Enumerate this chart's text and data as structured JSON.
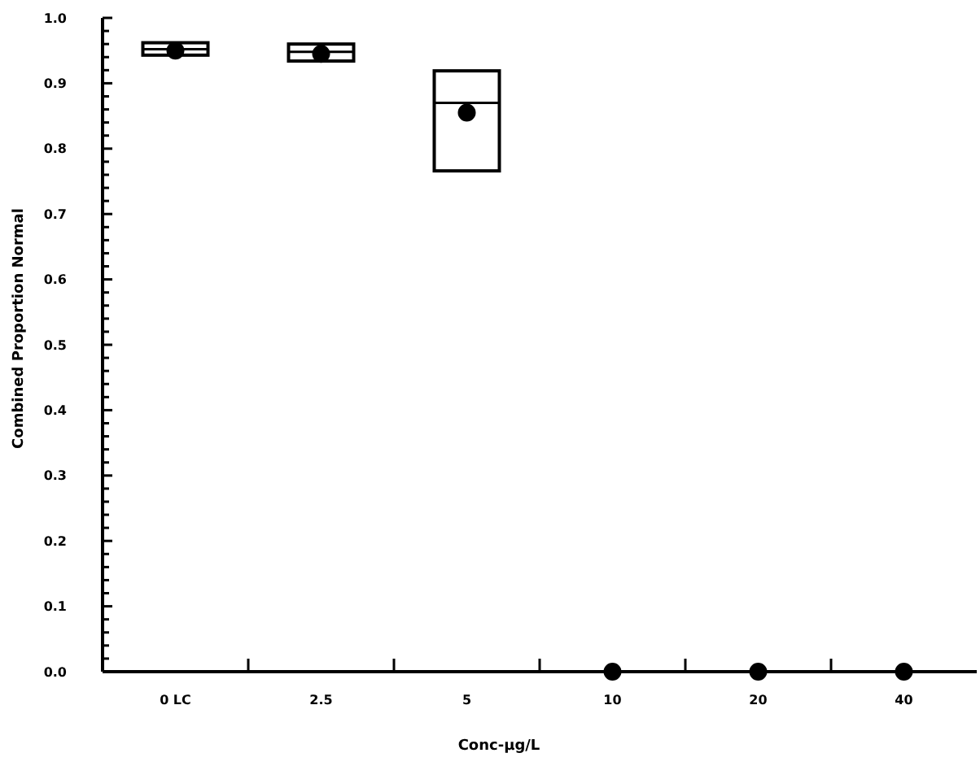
{
  "chart_data": {
    "type": "box",
    "xlabel": "Conc-µg/L",
    "ylabel": "Combined Proportion Normal",
    "categories": [
      "0 LC",
      "2.5",
      "5",
      "10",
      "20",
      "40"
    ],
    "boxes": [
      {
        "low": 0.943,
        "q1": 0.943,
        "median": 0.952,
        "q3": 0.962,
        "high": 0.962,
        "mean": 0.95
      },
      {
        "low": 0.934,
        "q1": 0.934,
        "median": 0.948,
        "q3": 0.96,
        "high": 0.96,
        "mean": 0.945
      },
      {
        "low": 0.766,
        "q1": 0.766,
        "median": 0.87,
        "q3": 0.919,
        "high": 0.919,
        "mean": 0.855
      },
      {
        "low": 0,
        "q1": 0,
        "median": 0,
        "q3": 0,
        "high": 0,
        "mean": 0
      },
      {
        "low": 0,
        "q1": 0,
        "median": 0,
        "q3": 0,
        "high": 0,
        "mean": 0
      },
      {
        "low": 0,
        "q1": 0,
        "median": 0,
        "q3": 0,
        "high": 0,
        "mean": 0
      }
    ],
    "ylim": [
      0,
      1
    ],
    "yticks": [
      "0.0",
      {
        "value": 0.02,
        "label": null
      },
      {
        "value": 0.04,
        "label": null
      },
      {
        "value": 0.06,
        "label": null
      },
      {
        "value": 0.08,
        "label": null
      },
      {
        "value": 0.1,
        "label": "0.1"
      },
      {
        "value": 0.12,
        "label": null
      },
      {
        "value": 0.14,
        "label": null
      },
      {
        "value": 0.16,
        "label": null
      },
      {
        "value": 0.18,
        "label": null
      },
      {
        "value": 0.2,
        "label": "0.2"
      },
      {
        "value": 0.22,
        "label": null
      },
      {
        "value": 0.24,
        "label": null
      },
      {
        "value": 0.26,
        "label": null
      },
      {
        "value": 0.28,
        "label": null
      },
      {
        "value": 0.3,
        "label": "0.3"
      },
      {
        "value": 0.32,
        "label": null
      },
      {
        "value": 0.34,
        "label": null
      },
      {
        "value": 0.36,
        "label": null
      },
      {
        "value": 0.38,
        "label": null
      },
      {
        "value": 0.4,
        "label": "0.4"
      },
      {
        "value": 0.42,
        "label": null
      },
      {
        "value": 0.44,
        "label": null
      },
      {
        "value": 0.46,
        "label": null
      },
      {
        "value": 0.48,
        "label": null
      },
      {
        "value": 0.5,
        "label": "0.5"
      },
      {
        "value": 0.52,
        "label": null
      },
      {
        "value": 0.54,
        "label": null
      },
      {
        "value": 0.56,
        "label": null
      },
      {
        "value": 0.58,
        "label": null
      },
      {
        "value": 0.6,
        "label": "0.6"
      },
      {
        "value": 0.62,
        "label": null
      },
      {
        "value": 0.64,
        "label": null
      },
      {
        "value": 0.66,
        "label": null
      },
      {
        "value": 0.68,
        "label": null
      },
      {
        "value": 0.7,
        "label": "0.7"
      },
      {
        "value": 0.72,
        "label": null
      },
      {
        "value": 0.74,
        "label": null
      },
      {
        "value": 0.76,
        "label": null
      },
      {
        "value": 0.78,
        "label": null
      },
      {
        "value": 0.8,
        "label": "0.8"
      },
      {
        "value": 0.82,
        "label": null
      },
      {
        "value": 0.84,
        "label": null
      },
      {
        "value": 0.86,
        "label": null
      },
      {
        "value": 0.88,
        "label": null
      },
      {
        "value": 0.9,
        "label": "0.9"
      },
      {
        "value": 0.92,
        "label": null
      },
      {
        "value": 0.94,
        "label": null
      },
      {
        "value": 0.96,
        "label": null
      },
      {
        "value": 0.98,
        "label": null
      },
      {
        "value": 1,
        "label": "1.0"
      }
    ],
    "grid": false
  }
}
